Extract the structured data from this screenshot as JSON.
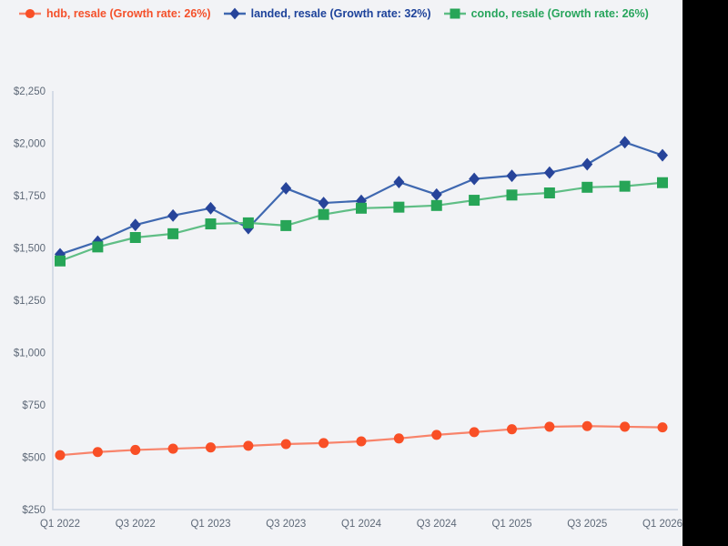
{
  "page": {
    "background_color": "#f2f3f6",
    "axis_color": "#c9d3e0",
    "tick_text_color": "#5e6978"
  },
  "legend": {
    "items": [
      {
        "label": "hdb, resale (Growth rate: 26%)",
        "marker": "circle",
        "text_color": "#f4502a",
        "marker_color": "#f94f26",
        "line_color": "#f8836a"
      },
      {
        "label": "landed, resale (Growth rate: 32%)",
        "marker": "diamond",
        "text_color": "#1d429a",
        "marker_color": "#27449a",
        "line_color": "#3f68b0"
      },
      {
        "label": "condo, resale (Growth rate: 26%)",
        "marker": "square",
        "text_color": "#27a55c",
        "marker_color": "#27a557",
        "line_color": "#5fbe85"
      }
    ]
  },
  "chart_data": {
    "type": "line",
    "title": "",
    "xlabel": "",
    "ylabel": "",
    "grid": false,
    "legend_position": "top-left",
    "ylim": [
      250,
      2250
    ],
    "y_tick_values": [
      250,
      500,
      750,
      1000,
      1250,
      1500,
      1750,
      2000,
      2250
    ],
    "y_tick_labels": [
      "$250",
      "$500",
      "$750",
      "$1,000",
      "$1,250",
      "$1,500",
      "$1,750",
      "$2,000",
      "$2,250"
    ],
    "x": [
      "Q1 2022",
      "Q2 2022",
      "Q3 2022",
      "Q4 2022",
      "Q1 2023",
      "Q2 2023",
      "Q3 2023",
      "Q4 2023",
      "Q1 2024",
      "Q2 2024",
      "Q3 2024",
      "Q4 2024",
      "Q1 2025",
      "Q2 2025",
      "Q3 2025",
      "Q4 2025",
      "Q1 2026"
    ],
    "x_tick_label_every": 2,
    "series": [
      {
        "name": "hdb, resale",
        "growth_rate": "26%",
        "marker": "circle",
        "marker_color": "#f94f26",
        "line_color": "#f8836a",
        "values": [
          510,
          525,
          535,
          541,
          547,
          555,
          563,
          568,
          576,
          590,
          607,
          620,
          634,
          646,
          649,
          646,
          643
        ]
      },
      {
        "name": "landed, resale",
        "growth_rate": "32%",
        "marker": "diamond",
        "marker_color": "#27449a",
        "line_color": "#3f68b0",
        "values": [
          1470,
          1530,
          1610,
          1655,
          1690,
          1595,
          1785,
          1715,
          1725,
          1815,
          1755,
          1830,
          1845,
          1860,
          1900,
          2005,
          1943
        ]
      },
      {
        "name": "condo, resale",
        "growth_rate": "26%",
        "marker": "square",
        "marker_color": "#27a557",
        "line_color": "#5fbe85",
        "values": [
          1438,
          1505,
          1550,
          1568,
          1615,
          1620,
          1607,
          1660,
          1690,
          1695,
          1703,
          1728,
          1753,
          1763,
          1790,
          1795,
          1812
        ]
      }
    ]
  }
}
